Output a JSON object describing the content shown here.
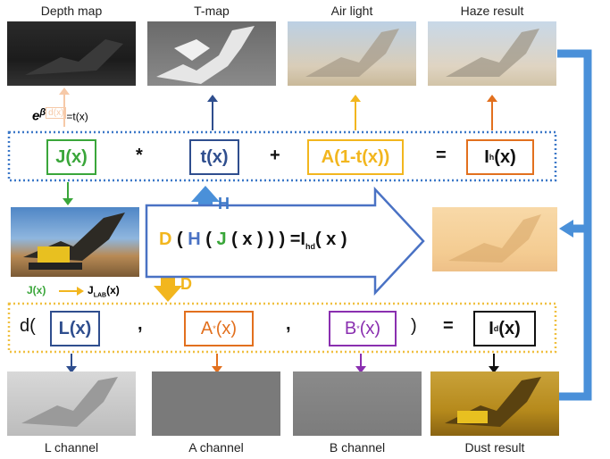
{
  "images": {
    "depth_map": "Depth map",
    "t_map": "T-map",
    "air_light": "Air light",
    "haze_result": "Haze result",
    "l_channel": "L channel",
    "a_channel": "A channel",
    "b_channel": "B channel",
    "dust_result": "Dust result"
  },
  "haze_equation": {
    "j": "J(x)",
    "times": "*",
    "t": "t(x)",
    "plus": "+",
    "a": "A(1-t(x))",
    "equals": "=",
    "ih_base": "I",
    "ih_sub": "h",
    "ih_tail": "(x)"
  },
  "exp_formula": {
    "e": "e",
    "beta": "β",
    "d": "d(x)",
    "rest": "=t(x)"
  },
  "arrow_h_label": "H",
  "arrow_d_label": "D",
  "composite": {
    "d": "D",
    "h": "H",
    "j": "J",
    "x": "x",
    "rest": "=I",
    "sub": "hd",
    "tail": "( x )"
  },
  "lab_conversion": {
    "from": "J(x)",
    "to": "J",
    "sub": "LAB",
    "tail": "(x)"
  },
  "dust_equation": {
    "prefix": "d(",
    "l": "L(x)",
    "comma1": ",",
    "a_base": "A",
    "a_sup": "*",
    "a_tail": "(x)",
    "comma2": ",",
    "b_base": "B",
    "b_sup": "*",
    "b_tail": "(x)",
    "close": ")",
    "equals": "=",
    "id_base": "I",
    "id_sub": "d",
    "id_tail": "(x)"
  },
  "colors": {
    "blue_arrow": "#4a90d9",
    "green": "#3aa63a",
    "navy": "#2f4e8e",
    "gold": "#f2b61e",
    "orange": "#e2701e",
    "purple": "#8a2fb0",
    "dotted_blue": "#3c78c8",
    "dotted_gold": "#f0c040"
  }
}
